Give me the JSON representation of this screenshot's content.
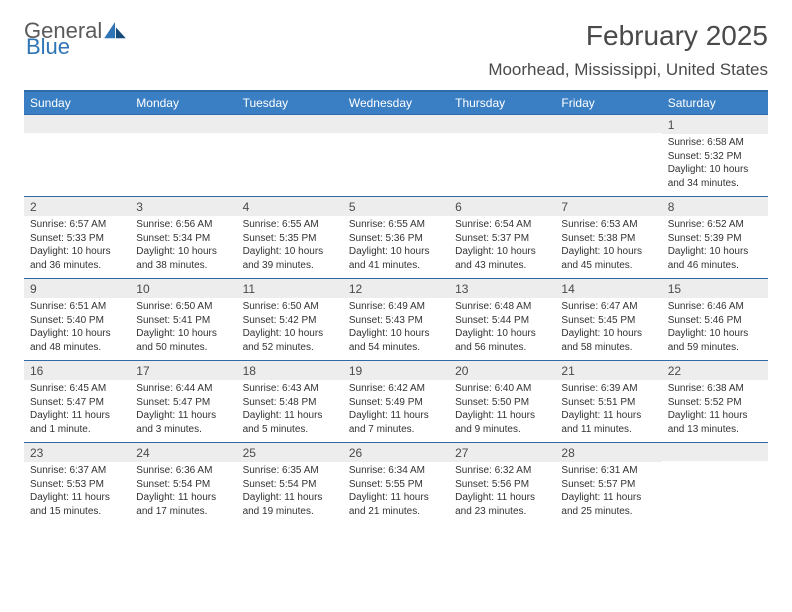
{
  "brand": {
    "part1": "General",
    "part2": "Blue"
  },
  "title": "February 2025",
  "location": "Moorhead, Mississippi, United States",
  "colors": {
    "header_bg": "#3a7fc4",
    "header_border": "#2f6aa8",
    "daynum_bg": "#ededed",
    "page_bg": "#ffffff",
    "brand_gray": "#5a5a5a",
    "brand_blue": "#2f74b5"
  },
  "weekdays": [
    "Sunday",
    "Monday",
    "Tuesday",
    "Wednesday",
    "Thursday",
    "Friday",
    "Saturday"
  ],
  "weeks": [
    [
      {
        "n": "",
        "lines": []
      },
      {
        "n": "",
        "lines": []
      },
      {
        "n": "",
        "lines": []
      },
      {
        "n": "",
        "lines": []
      },
      {
        "n": "",
        "lines": []
      },
      {
        "n": "",
        "lines": []
      },
      {
        "n": "1",
        "lines": [
          "Sunrise: 6:58 AM",
          "Sunset: 5:32 PM",
          "Daylight: 10 hours and 34 minutes."
        ]
      }
    ],
    [
      {
        "n": "2",
        "lines": [
          "Sunrise: 6:57 AM",
          "Sunset: 5:33 PM",
          "Daylight: 10 hours and 36 minutes."
        ]
      },
      {
        "n": "3",
        "lines": [
          "Sunrise: 6:56 AM",
          "Sunset: 5:34 PM",
          "Daylight: 10 hours and 38 minutes."
        ]
      },
      {
        "n": "4",
        "lines": [
          "Sunrise: 6:55 AM",
          "Sunset: 5:35 PM",
          "Daylight: 10 hours and 39 minutes."
        ]
      },
      {
        "n": "5",
        "lines": [
          "Sunrise: 6:55 AM",
          "Sunset: 5:36 PM",
          "Daylight: 10 hours and 41 minutes."
        ]
      },
      {
        "n": "6",
        "lines": [
          "Sunrise: 6:54 AM",
          "Sunset: 5:37 PM",
          "Daylight: 10 hours and 43 minutes."
        ]
      },
      {
        "n": "7",
        "lines": [
          "Sunrise: 6:53 AM",
          "Sunset: 5:38 PM",
          "Daylight: 10 hours and 45 minutes."
        ]
      },
      {
        "n": "8",
        "lines": [
          "Sunrise: 6:52 AM",
          "Sunset: 5:39 PM",
          "Daylight: 10 hours and 46 minutes."
        ]
      }
    ],
    [
      {
        "n": "9",
        "lines": [
          "Sunrise: 6:51 AM",
          "Sunset: 5:40 PM",
          "Daylight: 10 hours and 48 minutes."
        ]
      },
      {
        "n": "10",
        "lines": [
          "Sunrise: 6:50 AM",
          "Sunset: 5:41 PM",
          "Daylight: 10 hours and 50 minutes."
        ]
      },
      {
        "n": "11",
        "lines": [
          "Sunrise: 6:50 AM",
          "Sunset: 5:42 PM",
          "Daylight: 10 hours and 52 minutes."
        ]
      },
      {
        "n": "12",
        "lines": [
          "Sunrise: 6:49 AM",
          "Sunset: 5:43 PM",
          "Daylight: 10 hours and 54 minutes."
        ]
      },
      {
        "n": "13",
        "lines": [
          "Sunrise: 6:48 AM",
          "Sunset: 5:44 PM",
          "Daylight: 10 hours and 56 minutes."
        ]
      },
      {
        "n": "14",
        "lines": [
          "Sunrise: 6:47 AM",
          "Sunset: 5:45 PM",
          "Daylight: 10 hours and 58 minutes."
        ]
      },
      {
        "n": "15",
        "lines": [
          "Sunrise: 6:46 AM",
          "Sunset: 5:46 PM",
          "Daylight: 10 hours and 59 minutes."
        ]
      }
    ],
    [
      {
        "n": "16",
        "lines": [
          "Sunrise: 6:45 AM",
          "Sunset: 5:47 PM",
          "Daylight: 11 hours and 1 minute."
        ]
      },
      {
        "n": "17",
        "lines": [
          "Sunrise: 6:44 AM",
          "Sunset: 5:47 PM",
          "Daylight: 11 hours and 3 minutes."
        ]
      },
      {
        "n": "18",
        "lines": [
          "Sunrise: 6:43 AM",
          "Sunset: 5:48 PM",
          "Daylight: 11 hours and 5 minutes."
        ]
      },
      {
        "n": "19",
        "lines": [
          "Sunrise: 6:42 AM",
          "Sunset: 5:49 PM",
          "Daylight: 11 hours and 7 minutes."
        ]
      },
      {
        "n": "20",
        "lines": [
          "Sunrise: 6:40 AM",
          "Sunset: 5:50 PM",
          "Daylight: 11 hours and 9 minutes."
        ]
      },
      {
        "n": "21",
        "lines": [
          "Sunrise: 6:39 AM",
          "Sunset: 5:51 PM",
          "Daylight: 11 hours and 11 minutes."
        ]
      },
      {
        "n": "22",
        "lines": [
          "Sunrise: 6:38 AM",
          "Sunset: 5:52 PM",
          "Daylight: 11 hours and 13 minutes."
        ]
      }
    ],
    [
      {
        "n": "23",
        "lines": [
          "Sunrise: 6:37 AM",
          "Sunset: 5:53 PM",
          "Daylight: 11 hours and 15 minutes."
        ]
      },
      {
        "n": "24",
        "lines": [
          "Sunrise: 6:36 AM",
          "Sunset: 5:54 PM",
          "Daylight: 11 hours and 17 minutes."
        ]
      },
      {
        "n": "25",
        "lines": [
          "Sunrise: 6:35 AM",
          "Sunset: 5:54 PM",
          "Daylight: 11 hours and 19 minutes."
        ]
      },
      {
        "n": "26",
        "lines": [
          "Sunrise: 6:34 AM",
          "Sunset: 5:55 PM",
          "Daylight: 11 hours and 21 minutes."
        ]
      },
      {
        "n": "27",
        "lines": [
          "Sunrise: 6:32 AM",
          "Sunset: 5:56 PM",
          "Daylight: 11 hours and 23 minutes."
        ]
      },
      {
        "n": "28",
        "lines": [
          "Sunrise: 6:31 AM",
          "Sunset: 5:57 PM",
          "Daylight: 11 hours and 25 minutes."
        ]
      },
      {
        "n": "",
        "lines": []
      }
    ]
  ]
}
